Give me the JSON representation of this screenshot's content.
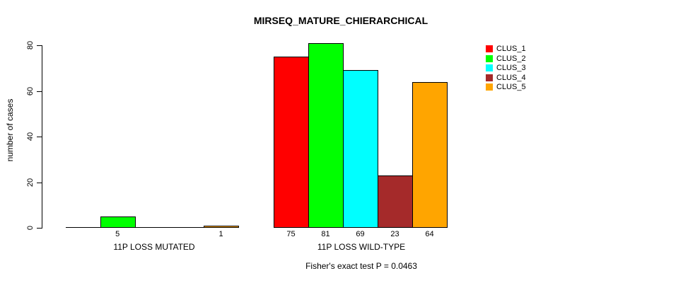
{
  "chart_data": {
    "type": "bar",
    "title": "MIRSEQ_MATURE_CHIERARCHICAL",
    "ylabel": "number of cases",
    "ylim": [
      0,
      80
    ],
    "yticks": [
      0,
      20,
      40,
      60,
      80
    ],
    "grid": false,
    "legend_position": "right-inside",
    "groups": [
      "11P LOSS MUTATED",
      "11P LOSS WILD-TYPE"
    ],
    "series": [
      {
        "name": "CLUS_1",
        "color": "#FF0000",
        "values": [
          0,
          75
        ]
      },
      {
        "name": "CLUS_2",
        "color": "#00FF00",
        "values": [
          5,
          81
        ]
      },
      {
        "name": "CLUS_3",
        "color": "#00FFFF",
        "values": [
          0,
          69
        ]
      },
      {
        "name": "CLUS_4",
        "color": "#A52A2A",
        "values": [
          0,
          23
        ]
      },
      {
        "name": "CLUS_5",
        "color": "#FFA500",
        "values": [
          1,
          64
        ]
      }
    ],
    "bar_value_labels": [
      [
        null,
        "5",
        null,
        null,
        "1"
      ],
      [
        "75",
        "81",
        "69",
        "23",
        "64"
      ]
    ],
    "annotation": "Fisher's exact test P = 0.0463"
  }
}
